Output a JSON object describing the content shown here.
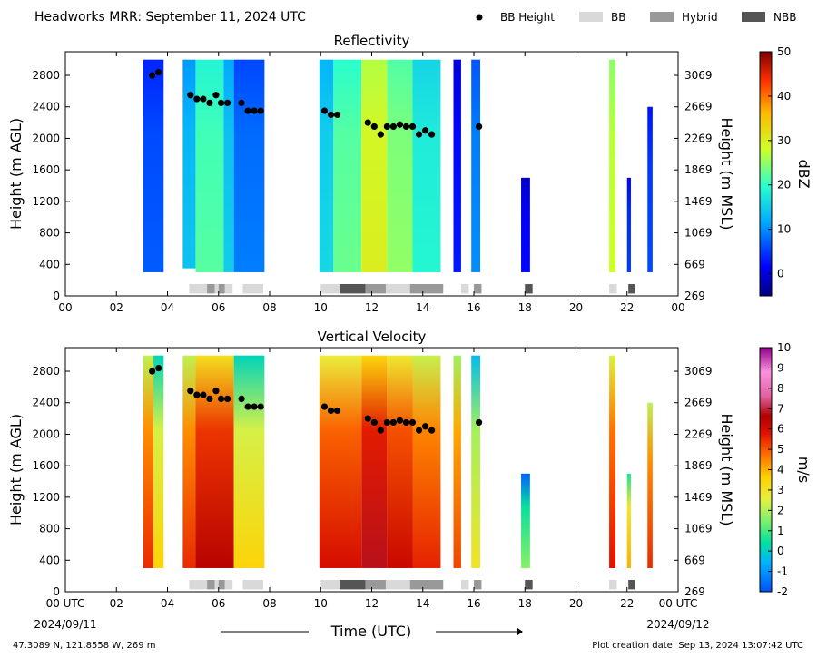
{
  "header": {
    "title": "Headworks MRR:  September 11, 2024 UTC",
    "legend": [
      {
        "label": "BB Height",
        "kind": "dot",
        "color": "#000000"
      },
      {
        "label": "BB",
        "kind": "swatch",
        "color": "#d9d9d9"
      },
      {
        "label": "Hybrid",
        "kind": "swatch",
        "color": "#999999"
      },
      {
        "label": "NBB",
        "kind": "swatch",
        "color": "#555555"
      }
    ]
  },
  "footer": {
    "location": "47.3089 N, 121.8558 W, 269 m",
    "created": "Plot creation date: Sep 13, 2024 13:07:42 UTC",
    "xlabel": "Time (UTC)",
    "start_date": "2024/09/11",
    "end_date": "2024/09/12"
  },
  "chart_data": [
    {
      "type": "heatmap",
      "title": "Reflectivity",
      "ylabel": "Height (m AGL)",
      "ylabel_right": "Height (m MSL)",
      "colorbar_label": "dBZ",
      "xlim": [
        0,
        24
      ],
      "ylim": [
        0,
        3100
      ],
      "x_ticks": [
        "00",
        "02",
        "04",
        "06",
        "08",
        "10",
        "12",
        "14",
        "16",
        "18",
        "20",
        "22",
        "00"
      ],
      "y_ticks": [
        0,
        400,
        800,
        1200,
        1600,
        2000,
        2400,
        2800
      ],
      "y_ticks_right": [
        269,
        669,
        1069,
        1469,
        1869,
        2269,
        2669,
        3069
      ],
      "colorbar": {
        "min": -5,
        "max": 50,
        "ticks": [
          0,
          10,
          20,
          30,
          40,
          50
        ]
      },
      "echo_segments": [
        {
          "t0": 3.05,
          "t1": 3.85,
          "z0": 300,
          "z1": 3000,
          "v": 7
        },
        {
          "t0": 4.6,
          "t1": 5.1,
          "z0": 350,
          "z1": 3000,
          "v": 14
        },
        {
          "t0": 5.1,
          "t1": 6.2,
          "z0": 300,
          "z1": 3000,
          "v": 22
        },
        {
          "t0": 6.2,
          "t1": 6.6,
          "z0": 300,
          "z1": 3000,
          "v": 15
        },
        {
          "t0": 6.6,
          "t1": 7.8,
          "z0": 300,
          "z1": 3000,
          "v": 9
        },
        {
          "t0": 9.95,
          "t1": 10.5,
          "z0": 300,
          "z1": 3000,
          "v": 16
        },
        {
          "t0": 10.5,
          "t1": 11.6,
          "z0": 300,
          "z1": 3000,
          "v": 23
        },
        {
          "t0": 11.6,
          "t1": 12.6,
          "z0": 300,
          "z1": 3000,
          "v": 30
        },
        {
          "t0": 12.6,
          "t1": 13.6,
          "z0": 300,
          "z1": 3000,
          "v": 25
        },
        {
          "t0": 13.6,
          "t1": 14.7,
          "z0": 300,
          "z1": 3000,
          "v": 19
        },
        {
          "t0": 15.2,
          "t1": 15.5,
          "z0": 300,
          "z1": 3000,
          "v": 3
        },
        {
          "t0": 15.9,
          "t1": 16.25,
          "z0": 300,
          "z1": 3000,
          "v": 10
        },
        {
          "t0": 17.85,
          "t1": 18.2,
          "z0": 300,
          "z1": 1500,
          "v": 2
        },
        {
          "t0": 21.3,
          "t1": 21.55,
          "z0": 300,
          "z1": 3000,
          "v": 28
        },
        {
          "t0": 22.0,
          "t1": 22.15,
          "z0": 300,
          "z1": 1500,
          "v": 5
        },
        {
          "t0": 22.8,
          "t1": 23.0,
          "z0": 300,
          "z1": 2400,
          "v": 6
        }
      ],
      "bb_height": [
        {
          "t": 3.4,
          "z": 2800
        },
        {
          "t": 3.65,
          "z": 2840
        },
        {
          "t": 4.9,
          "z": 2550
        },
        {
          "t": 5.15,
          "z": 2500
        },
        {
          "t": 5.4,
          "z": 2500
        },
        {
          "t": 5.65,
          "z": 2450
        },
        {
          "t": 5.9,
          "z": 2550
        },
        {
          "t": 6.1,
          "z": 2450
        },
        {
          "t": 6.35,
          "z": 2450
        },
        {
          "t": 6.9,
          "z": 2450
        },
        {
          "t": 7.15,
          "z": 2350
        },
        {
          "t": 7.4,
          "z": 2350
        },
        {
          "t": 7.65,
          "z": 2350
        },
        {
          "t": 10.15,
          "z": 2350
        },
        {
          "t": 10.4,
          "z": 2300
        },
        {
          "t": 10.65,
          "z": 2300
        },
        {
          "t": 11.85,
          "z": 2200
        },
        {
          "t": 12.1,
          "z": 2150
        },
        {
          "t": 12.35,
          "z": 2050
        },
        {
          "t": 12.6,
          "z": 2150
        },
        {
          "t": 12.85,
          "z": 2150
        },
        {
          "t": 13.1,
          "z": 2175
        },
        {
          "t": 13.35,
          "z": 2150
        },
        {
          "t": 13.6,
          "z": 2150
        },
        {
          "t": 13.85,
          "z": 2050
        },
        {
          "t": 14.1,
          "z": 2100
        },
        {
          "t": 14.35,
          "z": 2050
        },
        {
          "t": 16.2,
          "z": 2150
        }
      ],
      "bb_type": [
        {
          "t0": 4.85,
          "t1": 5.55,
          "type": "BB"
        },
        {
          "t0": 5.55,
          "t1": 5.85,
          "type": "Hybrid"
        },
        {
          "t0": 5.85,
          "t1": 6.0,
          "type": "BB"
        },
        {
          "t0": 6.0,
          "t1": 6.25,
          "type": "Hybrid"
        },
        {
          "t0": 6.25,
          "t1": 6.55,
          "type": "BB"
        },
        {
          "t0": 6.95,
          "t1": 7.75,
          "type": "BB"
        },
        {
          "t0": 10.0,
          "t1": 10.75,
          "type": "BB"
        },
        {
          "t0": 10.75,
          "t1": 11.75,
          "type": "NBB"
        },
        {
          "t0": 11.75,
          "t1": 12.55,
          "type": "Hybrid"
        },
        {
          "t0": 12.55,
          "t1": 13.5,
          "type": "BB"
        },
        {
          "t0": 13.5,
          "t1": 14.8,
          "type": "Hybrid"
        },
        {
          "t0": 15.5,
          "t1": 15.8,
          "type": "BB"
        },
        {
          "t0": 16.0,
          "t1": 16.3,
          "type": "Hybrid"
        },
        {
          "t0": 18.0,
          "t1": 18.3,
          "type": "NBB"
        },
        {
          "t0": 21.3,
          "t1": 21.6,
          "type": "BB"
        },
        {
          "t0": 22.05,
          "t1": 22.3,
          "type": "NBB"
        }
      ]
    },
    {
      "type": "heatmap",
      "title": "Vertical Velocity",
      "ylabel": "Height (m AGL)",
      "ylabel_right": "Height (m MSL)",
      "colorbar_label": "m/s",
      "xlim": [
        0,
        24
      ],
      "ylim": [
        0,
        3100
      ],
      "x_ticks": [
        "00 UTC",
        "02",
        "04",
        "06",
        "08",
        "10",
        "12",
        "14",
        "16",
        "18",
        "20",
        "22",
        "00 UTC"
      ],
      "y_ticks": [
        0,
        400,
        800,
        1200,
        1600,
        2000,
        2400,
        2800
      ],
      "y_ticks_right": [
        269,
        669,
        1069,
        1469,
        1869,
        2269,
        2669,
        3069
      ],
      "colorbar": {
        "min": -2,
        "max": 10,
        "ticks": [
          -2,
          -1,
          0,
          1,
          2,
          3,
          4,
          5,
          6,
          7,
          8,
          9,
          10
        ]
      },
      "echo_segments": [
        {
          "t0": 3.05,
          "t1": 3.45,
          "z0": 300,
          "z1": 3000,
          "v": 5.5
        },
        {
          "t0": 3.45,
          "t1": 3.85,
          "z0": 300,
          "z1": 3000,
          "v": 3.5
        },
        {
          "t0": 4.6,
          "t1": 5.1,
          "z0": 300,
          "z1": 3000,
          "v": 5.5
        },
        {
          "t0": 5.1,
          "t1": 6.6,
          "z0": 300,
          "z1": 3000,
          "v": 6.5
        },
        {
          "t0": 6.6,
          "t1": 7.8,
          "z0": 300,
          "z1": 3000,
          "v": 3.5
        },
        {
          "t0": 9.95,
          "t1": 11.6,
          "z0": 300,
          "z1": 3000,
          "v": 6.0
        },
        {
          "t0": 11.6,
          "t1": 12.6,
          "z0": 300,
          "z1": 3000,
          "v": 6.8
        },
        {
          "t0": 12.6,
          "t1": 13.6,
          "z0": 300,
          "z1": 3000,
          "v": 6.2
        },
        {
          "t0": 13.6,
          "t1": 14.7,
          "z0": 300,
          "z1": 3000,
          "v": 5.6
        },
        {
          "t0": 15.2,
          "t1": 15.5,
          "z0": 300,
          "z1": 3000,
          "v": 5.2
        },
        {
          "t0": 15.9,
          "t1": 16.25,
          "z0": 300,
          "z1": 3000,
          "v": 3.0
        },
        {
          "t0": 17.85,
          "t1": 18.2,
          "z0": 300,
          "z1": 1500,
          "v": 1.6
        },
        {
          "t0": 21.3,
          "t1": 21.55,
          "z0": 300,
          "z1": 3000,
          "v": 5.8
        },
        {
          "t0": 22.0,
          "t1": 22.15,
          "z0": 300,
          "z1": 1500,
          "v": 4.0
        },
        {
          "t0": 22.8,
          "t1": 23.0,
          "z0": 300,
          "z1": 2400,
          "v": 5.5
        }
      ],
      "bb_height": [
        {
          "t": 3.4,
          "z": 2800
        },
        {
          "t": 3.65,
          "z": 2840
        },
        {
          "t": 4.9,
          "z": 2550
        },
        {
          "t": 5.15,
          "z": 2500
        },
        {
          "t": 5.4,
          "z": 2500
        },
        {
          "t": 5.65,
          "z": 2450
        },
        {
          "t": 5.9,
          "z": 2550
        },
        {
          "t": 6.1,
          "z": 2450
        },
        {
          "t": 6.35,
          "z": 2450
        },
        {
          "t": 6.9,
          "z": 2450
        },
        {
          "t": 7.15,
          "z": 2350
        },
        {
          "t": 7.4,
          "z": 2350
        },
        {
          "t": 7.65,
          "z": 2350
        },
        {
          "t": 10.15,
          "z": 2350
        },
        {
          "t": 10.4,
          "z": 2300
        },
        {
          "t": 10.65,
          "z": 2300
        },
        {
          "t": 11.85,
          "z": 2200
        },
        {
          "t": 12.1,
          "z": 2150
        },
        {
          "t": 12.35,
          "z": 2050
        },
        {
          "t": 12.6,
          "z": 2150
        },
        {
          "t": 12.85,
          "z": 2150
        },
        {
          "t": 13.1,
          "z": 2175
        },
        {
          "t": 13.35,
          "z": 2150
        },
        {
          "t": 13.6,
          "z": 2150
        },
        {
          "t": 13.85,
          "z": 2050
        },
        {
          "t": 14.1,
          "z": 2100
        },
        {
          "t": 14.35,
          "z": 2050
        },
        {
          "t": 16.2,
          "z": 2150
        }
      ],
      "bb_type": [
        {
          "t0": 4.85,
          "t1": 5.55,
          "type": "BB"
        },
        {
          "t0": 5.55,
          "t1": 5.85,
          "type": "Hybrid"
        },
        {
          "t0": 5.85,
          "t1": 6.0,
          "type": "BB"
        },
        {
          "t0": 6.0,
          "t1": 6.25,
          "type": "Hybrid"
        },
        {
          "t0": 6.25,
          "t1": 6.55,
          "type": "BB"
        },
        {
          "t0": 6.95,
          "t1": 7.75,
          "type": "BB"
        },
        {
          "t0": 10.0,
          "t1": 10.75,
          "type": "BB"
        },
        {
          "t0": 10.75,
          "t1": 11.75,
          "type": "NBB"
        },
        {
          "t0": 11.75,
          "t1": 12.55,
          "type": "Hybrid"
        },
        {
          "t0": 12.55,
          "t1": 13.5,
          "type": "BB"
        },
        {
          "t0": 13.5,
          "t1": 14.8,
          "type": "Hybrid"
        },
        {
          "t0": 15.5,
          "t1": 15.8,
          "type": "BB"
        },
        {
          "t0": 16.0,
          "t1": 16.3,
          "type": "Hybrid"
        },
        {
          "t0": 18.0,
          "t1": 18.3,
          "type": "NBB"
        },
        {
          "t0": 21.3,
          "t1": 21.6,
          "type": "BB"
        },
        {
          "t0": 22.05,
          "t1": 22.3,
          "type": "NBB"
        }
      ]
    }
  ]
}
